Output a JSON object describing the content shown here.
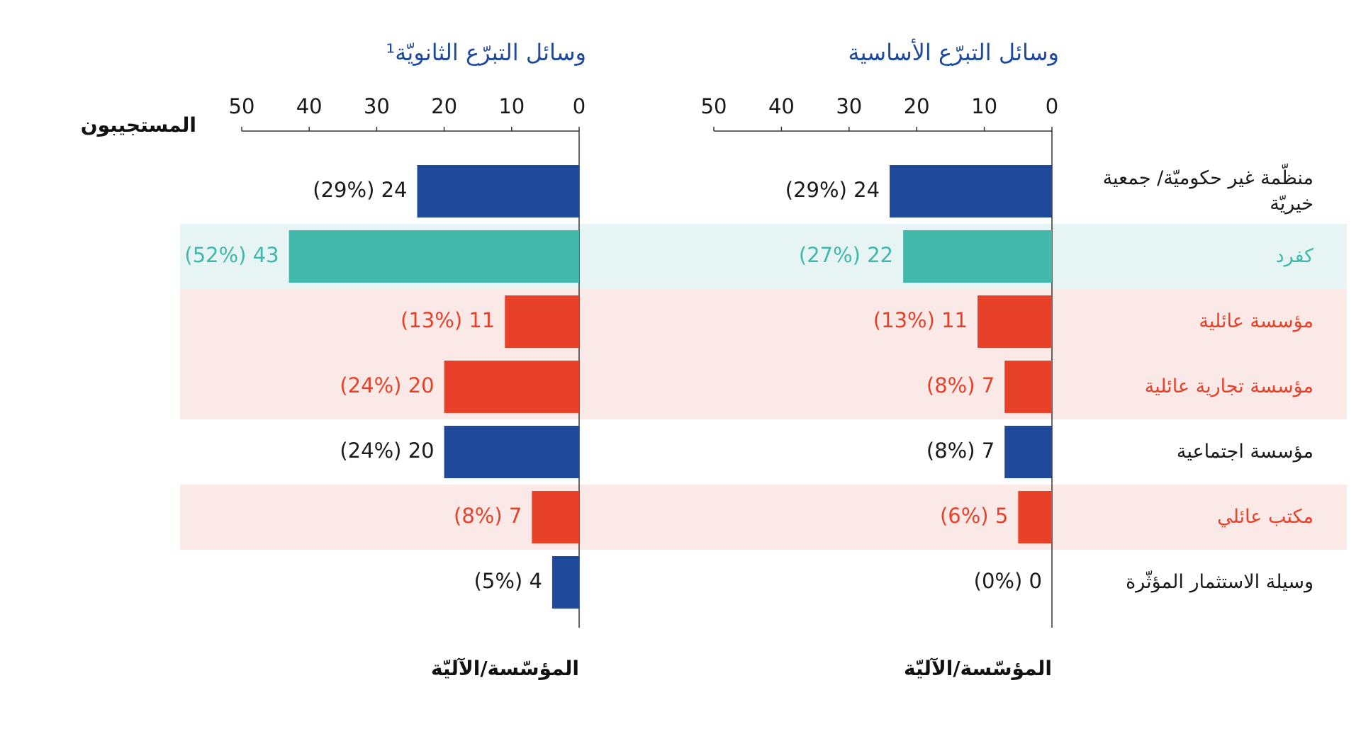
{
  "chart_data": [
    {
      "type": "bar",
      "title": "وسائل التبرّع الأساسية",
      "y_label": "المؤسّسة/الآليّة",
      "categories": [
        "منظّمة غير حكوميّة/ جمعية خيريّة",
        "كفرد",
        "مؤسسة عائلية",
        "مؤسسة تجارية عائلية",
        "مؤسسة اجتماعية",
        "مكتب عائلي",
        "وسيلة الاستثمار المؤثّرة"
      ],
      "category_colors": [
        "#1a1a1a",
        "#41b8aa",
        "#e8412a",
        "#e8412a",
        "#1a1a1a",
        "#e8412a",
        "#1a1a1a"
      ],
      "row_backgrounds": [
        null,
        "#e6f5f3",
        "#fbe9e7",
        "#fbe9e7",
        null,
        "#fbe9e7",
        null
      ],
      "values": [
        24,
        22,
        11,
        7,
        7,
        5,
        0
      ],
      "value_labels": [
        "24 (29%)",
        "22 (27%)",
        "11 (13%)",
        "7 (8%)",
        "7 (8%)",
        "5 (6%)",
        "0 (0%)"
      ],
      "colors": [
        "#1f4a9c",
        "#41b8aa",
        "#e8412a",
        "#e8412a",
        "#1f4a9c",
        "#e8412a",
        "#1f4a9c"
      ],
      "label_colors": [
        "#1a1a1a",
        "#41b8aa",
        "#e8412a",
        "#e8412a",
        "#1a1a1a",
        "#e8412a",
        "#1a1a1a"
      ],
      "xlim": [
        0,
        50
      ],
      "xticks": [
        0,
        10,
        20,
        30,
        40,
        50
      ]
    },
    {
      "type": "bar",
      "title": "وسائل التبرّع الثانويّة¹",
      "y_label": "المؤسّسة/الآليّة",
      "x_label": "المستجيبون",
      "values": [
        24,
        43,
        11,
        20,
        20,
        7,
        4
      ],
      "value_labels": [
        "24 (29%)",
        "43 (52%)",
        "11 (13%)",
        "20 (24%)",
        "20 (24%)",
        "7 (8%)",
        "4 (5%)"
      ],
      "colors": [
        "#1f4a9c",
        "#41b8aa",
        "#e8412a",
        "#e8412a",
        "#1f4a9c",
        "#e8412a",
        "#1f4a9c"
      ],
      "label_colors": [
        "#1a1a1a",
        "#41b8aa",
        "#e8412a",
        "#e8412a",
        "#1a1a1a",
        "#e8412a",
        "#1a1a1a"
      ],
      "xlim": [
        0,
        50
      ],
      "xticks": [
        0,
        10,
        20,
        30,
        40,
        50
      ]
    }
  ]
}
